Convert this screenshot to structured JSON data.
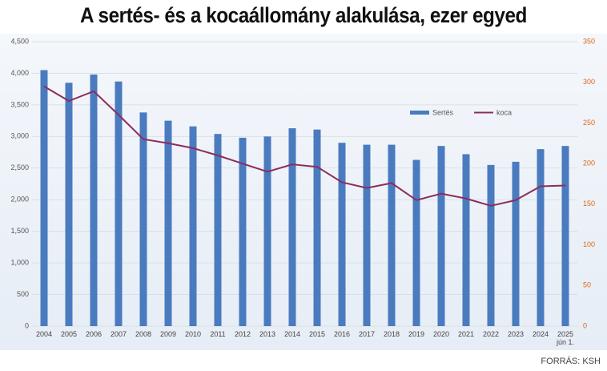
{
  "chart_data": {
    "type": "bar-line",
    "title": "A sertés- és a kocaállomány alakulása, ezer egyed",
    "source": "FORRÁS: KSH",
    "categories": [
      "2004",
      "2005",
      "2006",
      "2007",
      "2008",
      "2009",
      "2010",
      "2011",
      "2012",
      "2013",
      "2014",
      "2015",
      "2016",
      "2017",
      "2018",
      "2019",
      "2020",
      "2021",
      "2022",
      "2023",
      "2024",
      "2025\njún 1."
    ],
    "series": [
      {
        "name": "Sertés",
        "type": "bar",
        "color": "#4a7bbf",
        "values": [
          4050,
          3850,
          3980,
          3870,
          3380,
          3250,
          3160,
          3040,
          2980,
          3000,
          3130,
          3110,
          2900,
          2870,
          2870,
          2630,
          2850,
          2720,
          2550,
          2600,
          2800,
          2850
        ]
      },
      {
        "name": "koca",
        "type": "line",
        "axis": "y2",
        "color": "#8b2d5c",
        "values": [
          295,
          277,
          289,
          260,
          230,
          225,
          219,
          210,
          200,
          190,
          199,
          196,
          177,
          170,
          176,
          155,
          163,
          157,
          148,
          155,
          172,
          173
        ]
      }
    ],
    "ylim": [
      0,
      4500
    ],
    "yticks": [
      0,
      500,
      {
        "value": 1000,
        "label": "1,000"
      },
      {
        "value": 1500,
        "label": "1,500"
      },
      {
        "value": 2000,
        "label": "2,000"
      },
      {
        "value": 2500,
        "label": "2,500"
      },
      {
        "value": 3000,
        "label": "3,000"
      },
      {
        "value": 3500,
        "label": "3,500"
      },
      {
        "value": 4000,
        "label": "4,000"
      },
      {
        "value": 4500,
        "label": "4,500"
      }
    ],
    "y2lim": [
      0,
      350
    ],
    "y2ticks": [
      0,
      50,
      100,
      150,
      200,
      250,
      300,
      350
    ],
    "y2_color": "#e0661a",
    "grid": true,
    "legend": "top-right"
  }
}
